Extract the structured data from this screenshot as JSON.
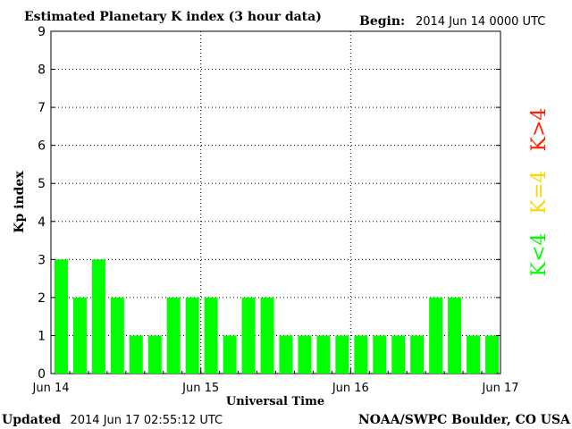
{
  "chart_data": {
    "type": "bar",
    "title": "Estimated Planetary K index (3 hour data)",
    "begin_label": "Begin:",
    "begin_value": "2014 Jun 14 0000 UTC",
    "ylabel": "Kp index",
    "xlabel": "Universal Time",
    "ylim": [
      0,
      9
    ],
    "yticks": [
      "0",
      "1",
      "2",
      "3",
      "4",
      "5",
      "6",
      "7",
      "8",
      "9"
    ],
    "xticks": [
      "Jun 14",
      "Jun 15",
      "Jun 16",
      "Jun 17"
    ],
    "values": [
      3,
      2,
      3,
      2,
      1,
      1,
      2,
      2,
      2,
      1,
      2,
      2,
      1,
      1,
      1,
      1,
      1,
      1,
      1,
      1,
      2,
      2,
      1,
      1
    ],
    "grid": true,
    "bar_color": "#00ff00",
    "legend": [
      {
        "label": "K<4",
        "color": "#00ff00"
      },
      {
        "label": "K=4",
        "color": "#ffd700"
      },
      {
        "label": "K>4",
        "color": "#ff2200"
      }
    ],
    "legend_placement": "right"
  },
  "footer": {
    "updated_label": "Updated",
    "updated_value": "2014 Jun 17 02:55:12 UTC",
    "source": "NOAA/SWPC Boulder, CO USA"
  }
}
